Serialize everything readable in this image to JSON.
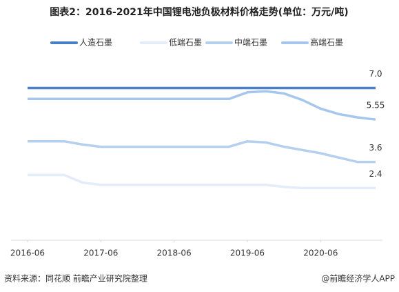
{
  "chart_data": {
    "type": "line",
    "title": "图表2：2016-2021年中国锂电池负极材料价格走势(单位：万元/吨)",
    "source": "资料来源：同花顺 前瞻产业研究院整理",
    "credit": "@前瞻经济学人APP",
    "x": [
      "2016-06",
      "2016-09",
      "2016-12",
      "2017-03",
      "2017-06",
      "2017-09",
      "2017-12",
      "2018-03",
      "2018-06",
      "2018-09",
      "2018-12",
      "2019-03",
      "2019-06",
      "2019-09",
      "2019-12",
      "2020-03",
      "2020-06",
      "2020-09",
      "2020-12",
      "2021-03"
    ],
    "xlim": [
      "2016-06",
      "2021-03"
    ],
    "xticks": [
      "2016-06",
      "2017-06",
      "2018-06",
      "2019-06",
      "2020-06"
    ],
    "ylim": [
      0,
      8
    ],
    "legend": "top",
    "series": [
      {
        "name": "人造石墨",
        "color": "#4a7ec5",
        "values": [
          7,
          7,
          7,
          7,
          7,
          7,
          7,
          7,
          7,
          7,
          7,
          7,
          7,
          7,
          7,
          7,
          7,
          7,
          7,
          7
        ],
        "value_labels": [
          null,
          null,
          null,
          null,
          null,
          null,
          null,
          null,
          null,
          null,
          null,
          null,
          null,
          null,
          null,
          null,
          null,
          null,
          null,
          "7.0"
        ]
      },
      {
        "name": "低端石墨",
        "color": "#e3ecf8",
        "values": [
          3,
          3,
          3,
          2.65,
          2.55,
          2.55,
          2.55,
          2.55,
          2.55,
          2.55,
          2.55,
          2.55,
          2.55,
          2.55,
          2.45,
          2.4,
          2.4,
          2.4,
          2.4,
          2.4
        ],
        "value_labels": [
          null,
          null,
          null,
          null,
          null,
          null,
          null,
          null,
          null,
          null,
          null,
          null,
          null,
          null,
          null,
          null,
          null,
          null,
          null,
          "2.4"
        ]
      },
      {
        "name": "中端石墨",
        "color": "#b5cfee",
        "values": [
          4.55,
          4.55,
          4.55,
          4.4,
          4.3,
          4.3,
          4.3,
          4.3,
          4.3,
          4.3,
          4.3,
          4.3,
          4.55,
          4.5,
          4.3,
          4.15,
          4,
          3.8,
          3.6,
          3.6
        ],
        "value_labels": [
          null,
          null,
          null,
          null,
          null,
          null,
          null,
          null,
          null,
          null,
          null,
          null,
          null,
          null,
          null,
          null,
          null,
          null,
          null,
          "3.6"
        ]
      },
      {
        "name": "高端石墨",
        "color": "#a6c6ed",
        "values": [
          6.5,
          6.5,
          6.5,
          6.5,
          6.5,
          6.5,
          6.5,
          6.5,
          6.5,
          6.5,
          6.5,
          6.5,
          6.8,
          6.85,
          6.75,
          6.45,
          6.05,
          5.8,
          5.65,
          5.55
        ],
        "value_labels": [
          null,
          null,
          null,
          null,
          null,
          null,
          null,
          null,
          null,
          null,
          null,
          null,
          null,
          null,
          null,
          null,
          null,
          null,
          null,
          "5.55"
        ]
      }
    ]
  }
}
